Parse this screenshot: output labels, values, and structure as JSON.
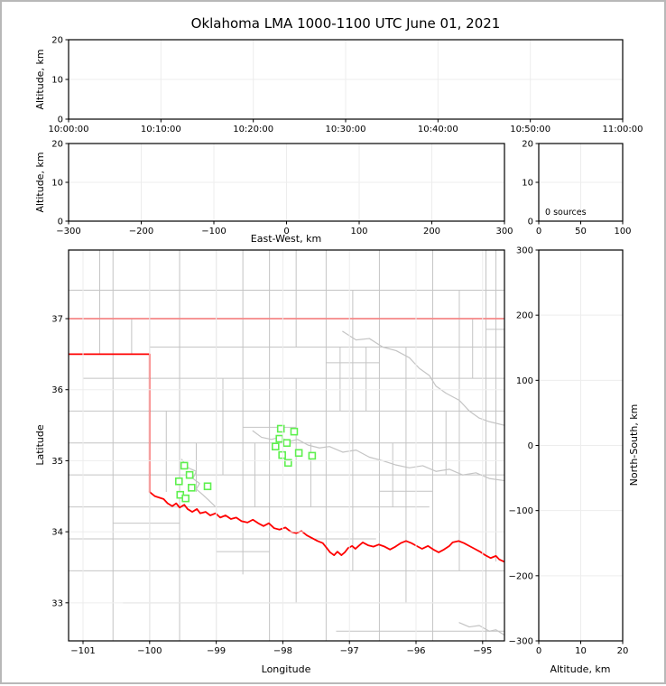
{
  "title": "Oklahoma LMA 1000-1100 UTC June 01, 2021",
  "colors": {
    "state_border": "#ff0000",
    "county_line": "#c4c4c4",
    "station_marker": "#5ef04e",
    "gridline": "#ededed",
    "spine": "#000000"
  },
  "chart_data": [
    {
      "id": "time-altitude-panel",
      "type": "scatter",
      "description": "VHF source altitude vs time (empty - no sources)",
      "xlabel": "",
      "ylabel": "Altitude, km",
      "xtick_labels": [
        "10:00:00",
        "10:10:00",
        "10:20:00",
        "10:30:00",
        "10:40:00",
        "10:50:00",
        "11:00:00"
      ],
      "ylim": [
        0,
        20
      ],
      "yticks": [
        0,
        10,
        20
      ],
      "points": []
    },
    {
      "id": "eastwest-altitude-panel",
      "type": "scatter",
      "description": "Altitude vs east-west distance (empty - no sources)",
      "xlabel": "East-West, km",
      "ylabel": "Altitude, km",
      "xlim": [
        -300,
        300
      ],
      "xticks": [
        -300,
        -200,
        -100,
        0,
        100,
        200,
        300
      ],
      "ylim": [
        0,
        20
      ],
      "yticks": [
        0,
        10,
        20
      ],
      "points": []
    },
    {
      "id": "altitude-histogram-panel",
      "type": "line",
      "description": "Source count histogram vs altitude (empty)",
      "annotation": "0 sources",
      "xlim": [
        0,
        100
      ],
      "xticks": [
        0,
        50,
        100
      ],
      "ylim": [
        0,
        20
      ],
      "yticks": [
        0,
        10,
        20
      ],
      "points": []
    },
    {
      "id": "plan-view-map-panel",
      "type": "scatter",
      "description": "Plan view map of Oklahoma with LMA station locations",
      "xlabel": "Longitude",
      "ylabel": "Latitude",
      "xlim": [
        -101.217,
        -94.672
      ],
      "xticks": [
        -101,
        -100,
        -99,
        -98,
        -97,
        -96,
        -95
      ],
      "ylim": [
        32.464,
        37.966
      ],
      "yticks": [
        33,
        34,
        35,
        36,
        37
      ],
      "stations": [
        [
          -98.03,
          35.45
        ],
        [
          -97.83,
          35.41
        ],
        [
          -98.05,
          35.31
        ],
        [
          -97.94,
          35.25
        ],
        [
          -98.11,
          35.2
        ],
        [
          -97.76,
          35.11
        ],
        [
          -98.01,
          35.08
        ],
        [
          -97.56,
          35.07
        ],
        [
          -97.92,
          34.97
        ],
        [
          -99.48,
          34.93
        ],
        [
          -99.4,
          34.8
        ],
        [
          -99.56,
          34.71
        ],
        [
          -99.37,
          34.62
        ],
        [
          -99.13,
          34.64
        ],
        [
          -99.54,
          34.52
        ],
        [
          -99.46,
          34.47
        ]
      ],
      "state_border": [
        [
          [
            -101.217,
            37.0
          ],
          [
            -94.672,
            37.0
          ]
        ],
        [
          [
            -101.217,
            36.5
          ],
          [
            -100.0,
            36.5
          ],
          [
            -100.0,
            34.56
          ]
        ],
        [
          [
            -100.0,
            34.56
          ],
          [
            -99.92,
            34.5
          ],
          [
            -99.79,
            34.46
          ],
          [
            -99.73,
            34.4
          ],
          [
            -99.66,
            34.36
          ],
          [
            -99.6,
            34.4
          ],
          [
            -99.55,
            34.34
          ],
          [
            -99.48,
            34.38
          ],
          [
            -99.43,
            34.32
          ],
          [
            -99.36,
            34.28
          ],
          [
            -99.29,
            34.32
          ],
          [
            -99.24,
            34.26
          ],
          [
            -99.16,
            34.28
          ],
          [
            -99.09,
            34.23
          ],
          [
            -99.01,
            34.26
          ],
          [
            -98.94,
            34.2
          ],
          [
            -98.86,
            34.23
          ],
          [
            -98.78,
            34.18
          ],
          [
            -98.7,
            34.2
          ],
          [
            -98.62,
            34.15
          ],
          [
            -98.53,
            34.13
          ],
          [
            -98.45,
            34.17
          ],
          [
            -98.37,
            34.12
          ],
          [
            -98.29,
            34.08
          ],
          [
            -98.21,
            34.12
          ],
          [
            -98.13,
            34.05
          ],
          [
            -98.05,
            34.03
          ],
          [
            -97.96,
            34.06
          ],
          [
            -97.88,
            34.0
          ],
          [
            -97.8,
            33.98
          ],
          [
            -97.72,
            34.01
          ],
          [
            -97.64,
            33.95
          ],
          [
            -97.56,
            33.91
          ],
          [
            -97.48,
            33.87
          ],
          [
            -97.4,
            33.84
          ],
          [
            -97.34,
            33.77
          ],
          [
            -97.29,
            33.71
          ],
          [
            -97.23,
            33.67
          ],
          [
            -97.18,
            33.72
          ],
          [
            -97.12,
            33.67
          ],
          [
            -97.07,
            33.71
          ],
          [
            -97.02,
            33.77
          ],
          [
            -96.96,
            33.8
          ],
          [
            -96.91,
            33.76
          ],
          [
            -96.85,
            33.81
          ],
          [
            -96.8,
            33.85
          ],
          [
            -96.72,
            33.81
          ],
          [
            -96.64,
            33.79
          ],
          [
            -96.56,
            33.82
          ],
          [
            -96.47,
            33.79
          ],
          [
            -96.39,
            33.75
          ],
          [
            -96.31,
            33.79
          ],
          [
            -96.23,
            33.84
          ],
          [
            -96.15,
            33.87
          ],
          [
            -96.07,
            33.84
          ],
          [
            -95.99,
            33.8
          ],
          [
            -95.91,
            33.76
          ],
          [
            -95.82,
            33.8
          ],
          [
            -95.74,
            33.75
          ],
          [
            -95.66,
            33.71
          ],
          [
            -95.58,
            33.75
          ],
          [
            -95.5,
            33.8
          ],
          [
            -95.45,
            33.85
          ],
          [
            -95.36,
            33.87
          ],
          [
            -95.28,
            33.84
          ],
          [
            -95.2,
            33.8
          ],
          [
            -95.12,
            33.76
          ],
          [
            -95.04,
            33.72
          ],
          [
            -94.96,
            33.67
          ],
          [
            -94.88,
            33.63
          ],
          [
            -94.8,
            33.66
          ],
          [
            -94.75,
            33.61
          ],
          [
            -94.68,
            33.58
          ]
        ]
      ],
      "county_vertical": [
        [
          -101.0,
          32.46,
          37.97
        ],
        [
          -100.55,
          32.46,
          37.97
        ],
        [
          -100.75,
          36.5,
          37.97
        ],
        [
          -100.27,
          36.5,
          37.0
        ],
        [
          -100.0,
          36.5,
          37.97
        ],
        [
          -100.0,
          32.46,
          34.56
        ],
        [
          -99.75,
          34.56,
          35.7
        ],
        [
          -99.55,
          32.46,
          37.97
        ],
        [
          -99.3,
          34.56,
          35.25
        ],
        [
          -99.0,
          32.46,
          37.97
        ],
        [
          -98.9,
          34.8,
          36.16
        ],
        [
          -98.6,
          33.4,
          37.97
        ],
        [
          -98.42,
          34.35,
          35.25
        ],
        [
          -98.2,
          32.46,
          37.97
        ],
        [
          -97.8,
          33.0,
          36.16
        ],
        [
          -97.8,
          36.6,
          37.97
        ],
        [
          -97.58,
          34.35,
          35.25
        ],
        [
          -97.35,
          32.46,
          37.97
        ],
        [
          -97.14,
          35.7,
          36.6
        ],
        [
          -96.95,
          33.45,
          37.4
        ],
        [
          -96.75,
          35.7,
          36.6
        ],
        [
          -96.55,
          32.46,
          37.97
        ],
        [
          -96.35,
          34.35,
          35.25
        ],
        [
          -96.15,
          33.0,
          36.6
        ],
        [
          -95.75,
          32.46,
          37.97
        ],
        [
          -95.55,
          34.8,
          35.7
        ],
        [
          -95.35,
          33.45,
          37.4
        ],
        [
          -95.15,
          36.16,
          37.0
        ],
        [
          -94.95,
          32.46,
          37.97
        ],
        [
          -94.8,
          33.58,
          37.97
        ]
      ],
      "county_horizontal": [
        [
          37.4,
          -101.217,
          -94.672
        ],
        [
          36.6,
          -100.0,
          -94.672
        ],
        [
          36.16,
          -101.0,
          -94.672
        ],
        [
          35.7,
          -101.217,
          -94.672
        ],
        [
          35.25,
          -101.217,
          -94.672
        ],
        [
          34.8,
          -101.217,
          -94.672
        ],
        [
          34.35,
          -101.217,
          -95.8
        ],
        [
          33.9,
          -101.217,
          -96.6
        ],
        [
          33.45,
          -101.217,
          -94.672
        ],
        [
          33.0,
          -100.4,
          -94.672
        ],
        [
          32.6,
          -97.2,
          -94.672
        ],
        [
          36.85,
          -94.95,
          -94.672
        ],
        [
          35.47,
          -98.6,
          -97.8
        ],
        [
          34.57,
          -96.55,
          -95.75
        ],
        [
          36.38,
          -97.35,
          -96.55
        ],
        [
          33.72,
          -99.0,
          -98.2
        ],
        [
          34.12,
          -100.55,
          -99.55
        ]
      ],
      "county_rivers": [
        [
          [
            -98.45,
            35.42
          ],
          [
            -98.32,
            35.33
          ],
          [
            -98.17,
            35.3
          ],
          [
            -98.05,
            35.33
          ],
          [
            -97.9,
            35.27
          ],
          [
            -97.78,
            35.3
          ],
          [
            -97.62,
            35.22
          ],
          [
            -97.45,
            35.18
          ],
          [
            -97.3,
            35.2
          ],
          [
            -97.1,
            35.12
          ],
          [
            -96.9,
            35.15
          ],
          [
            -96.7,
            35.05
          ],
          [
            -96.5,
            35.0
          ],
          [
            -96.3,
            34.94
          ],
          [
            -96.1,
            34.9
          ],
          [
            -95.9,
            34.93
          ],
          [
            -95.7,
            34.85
          ],
          [
            -95.5,
            34.88
          ],
          [
            -95.3,
            34.8
          ],
          [
            -95.1,
            34.83
          ],
          [
            -94.9,
            34.75
          ],
          [
            -94.68,
            34.72
          ]
        ],
        [
          [
            -99.52,
            35.02
          ],
          [
            -99.42,
            34.9
          ],
          [
            -99.3,
            34.85
          ],
          [
            -99.35,
            34.75
          ],
          [
            -99.25,
            34.68
          ],
          [
            -99.3,
            34.6
          ],
          [
            -99.2,
            34.52
          ],
          [
            -99.12,
            34.45
          ],
          [
            -99.02,
            34.36
          ]
        ],
        [
          [
            -97.1,
            36.82
          ],
          [
            -96.9,
            36.7
          ],
          [
            -96.7,
            36.72
          ],
          [
            -96.5,
            36.6
          ],
          [
            -96.3,
            36.55
          ],
          [
            -96.1,
            36.45
          ],
          [
            -95.95,
            36.3
          ],
          [
            -95.8,
            36.2
          ],
          [
            -95.7,
            36.05
          ],
          [
            -95.55,
            35.95
          ],
          [
            -95.35,
            35.85
          ],
          [
            -95.2,
            35.7
          ],
          [
            -95.05,
            35.6
          ],
          [
            -94.9,
            35.55
          ],
          [
            -94.68,
            35.5
          ]
        ],
        [
          [
            -95.35,
            32.72
          ],
          [
            -95.2,
            32.66
          ],
          [
            -95.05,
            32.68
          ],
          [
            -94.9,
            32.6
          ],
          [
            -94.8,
            32.62
          ],
          [
            -94.68,
            32.55
          ]
        ]
      ]
    },
    {
      "id": "northsouth-altitude-panel",
      "type": "scatter",
      "description": "North-south distance vs altitude (empty - no sources)",
      "xlabel": "Altitude, km",
      "ylabel": "North-South, km",
      "xlim": [
        0,
        20
      ],
      "xticks": [
        0,
        10,
        20
      ],
      "ylim": [
        -300,
        300
      ],
      "yticks": [
        -300,
        -200,
        -100,
        0,
        100,
        200,
        300
      ],
      "points": []
    }
  ]
}
